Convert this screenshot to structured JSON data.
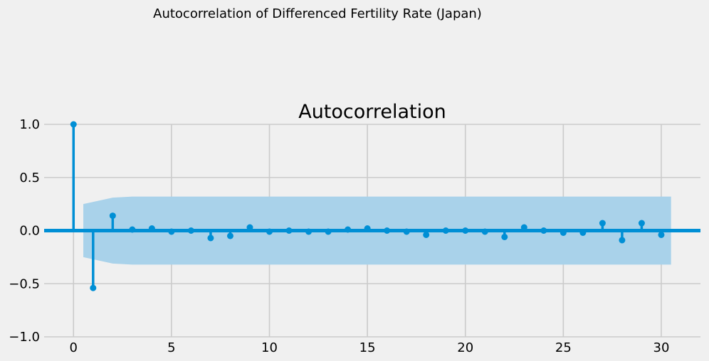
{
  "chart_data": {
    "type": "stem",
    "suptitle": "Autocorrelation of Differenced Fertility Rate (Japan)",
    "title": "Autocorrelation",
    "xlabel": "",
    "ylabel": "",
    "xlim": [
      -1.5,
      32
    ],
    "ylim": [
      -1,
      1
    ],
    "xticks": [
      0,
      5,
      10,
      15,
      20,
      25,
      30
    ],
    "yticks": [
      -1.0,
      -0.5,
      0.0,
      0.5,
      1.0
    ],
    "xtick_labels": [
      "0",
      "5",
      "10",
      "15",
      "20",
      "25",
      "30"
    ],
    "ytick_labels": [
      "−1.0",
      "−0.5",
      "0.0",
      "0.5",
      "1.0"
    ],
    "grid": true,
    "lags": [
      0,
      1,
      2,
      3,
      4,
      5,
      6,
      7,
      8,
      9,
      10,
      11,
      12,
      13,
      14,
      15,
      16,
      17,
      18,
      19,
      20,
      21,
      22,
      23,
      24,
      25,
      26,
      27,
      28,
      29,
      30
    ],
    "acf": [
      1.0,
      -0.54,
      0.14,
      0.01,
      0.02,
      -0.01,
      0.0,
      -0.07,
      -0.05,
      0.03,
      -0.01,
      0.0,
      -0.01,
      -0.01,
      0.01,
      0.02,
      0.0,
      -0.01,
      -0.04,
      0.0,
      0.0,
      -0.01,
      -0.06,
      0.03,
      0.0,
      -0.02,
      -0.02,
      0.07,
      -0.09,
      0.07,
      -0.04
    ],
    "confidence_band": {
      "lags": [
        0.5,
        1,
        2,
        3,
        30.5
      ],
      "upper": [
        0.25,
        0.27,
        0.31,
        0.32,
        0.32
      ],
      "lower": [
        -0.25,
        -0.27,
        -0.31,
        -0.32,
        -0.32
      ]
    },
    "colors": {
      "stem": "#008fd5",
      "band": "#a9d2ea",
      "grid": "#cbcbcb",
      "background": "#f0f0f0"
    }
  }
}
